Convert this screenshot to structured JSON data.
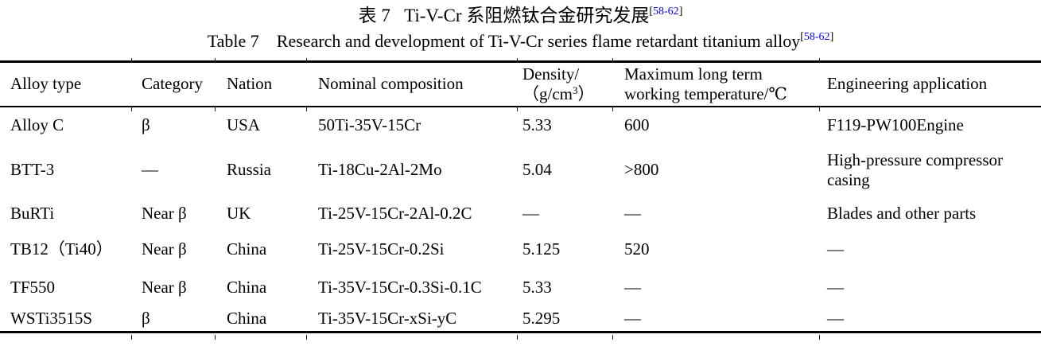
{
  "page": {
    "title_cn": {
      "text": "表 7   Ti-V-Cr 系阻燃钛合金研究发展",
      "ref_open": "[",
      "ref_numbers": "58-62",
      "ref_close": "]"
    },
    "title_en": {
      "text": "Table 7    Research and development of Ti-V-Cr series flame retardant titanium alloy",
      "ref_open": "[",
      "ref_numbers": "58-62",
      "ref_close": "]"
    }
  },
  "table": {
    "headers": {
      "alloy_type": "Alloy type",
      "category": "Category",
      "nation": "Nation",
      "composition": "Nominal composition",
      "density_line1": "Density/",
      "density_line2_pre": "（g/cm",
      "density_sup": "3",
      "density_line2_post": "）",
      "max_temp_line1": "Maximum long term",
      "max_temp_line2": "working temperature/℃",
      "application": "Engineering application"
    },
    "rows": [
      {
        "alloy_type": "Alloy C",
        "category": "β",
        "nation": "USA",
        "composition": "50Ti-35V-15Cr",
        "density": "5.33",
        "max_temp": "600",
        "application": "F119-PW100Engine"
      },
      {
        "alloy_type": "BTT-3",
        "category": "—",
        "nation": "Russia",
        "composition": "Ti-18Cu-2Al-2Mo",
        "density": "5.04",
        "max_temp": ">800",
        "application": "High-pressure compressor casing"
      },
      {
        "alloy_type": "BuRTi",
        "category": "Near β",
        "nation": "UK",
        "composition": "Ti-25V-15Cr-2Al-0.2C",
        "density": "—",
        "max_temp": "—",
        "application": "Blades and other parts"
      },
      {
        "alloy_type": "TB12（Ti40）",
        "category": "Near β",
        "nation": "China",
        "composition": "Ti-25V-15Cr-0.2Si",
        "density": "5.125",
        "max_temp": "520",
        "application": "—"
      },
      {
        "alloy_type": "TF550",
        "category": "Near β",
        "nation": "China",
        "composition": "Ti-35V-15Cr-0.3Si-0.1C",
        "density": "5.33",
        "max_temp": "—",
        "application": "—"
      },
      {
        "alloy_type": "WSTi3515S",
        "category": "β",
        "nation": "China",
        "composition": "Ti-35V-15Cr-xSi-yC",
        "density": "5.295",
        "max_temp": "—",
        "application": "—"
      }
    ]
  },
  "colors": {
    "reference_blue": "#0000EE",
    "text_black": "#000000"
  }
}
